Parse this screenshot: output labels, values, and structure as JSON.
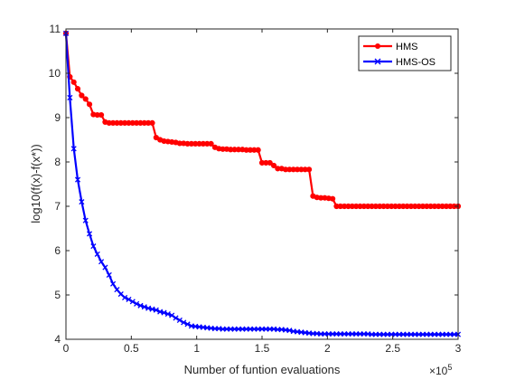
{
  "chart_data": {
    "type": "line",
    "title": "",
    "xlabel": "Number of funtion evaluations",
    "ylabel": "log10(f(x)-f(x*))",
    "x_exponent_base": "×10",
    "x_exponent_power": "5",
    "xlim": [
      0,
      3
    ],
    "ylim": [
      4,
      11
    ],
    "x_ticks": [
      0,
      0.5,
      1,
      1.5,
      2,
      2.5,
      3
    ],
    "x_tick_labels": [
      "0",
      "0.5",
      "1",
      "1.5",
      "2",
      "2.5",
      "3"
    ],
    "y_ticks": [
      4,
      5,
      6,
      7,
      8,
      9,
      10,
      11
    ],
    "y_tick_labels": [
      "4",
      "5",
      "6",
      "7",
      "8",
      "9",
      "10",
      "11"
    ],
    "legend_position": "top-right",
    "series": [
      {
        "name": "HMS",
        "color": "#ff0000",
        "marker": "circle",
        "x": [
          0,
          0.03,
          0.06,
          0.09,
          0.12,
          0.15,
          0.18,
          0.21,
          0.24,
          0.27,
          0.3,
          0.33,
          0.36,
          0.39,
          0.42,
          0.45,
          0.48,
          0.51,
          0.54,
          0.57,
          0.6,
          0.63,
          0.66,
          0.69,
          0.72,
          0.75,
          0.78,
          0.81,
          0.84,
          0.87,
          0.9,
          0.93,
          0.96,
          0.99,
          1.02,
          1.05,
          1.08,
          1.11,
          1.14,
          1.17,
          1.2,
          1.23,
          1.26,
          1.29,
          1.32,
          1.35,
          1.38,
          1.41,
          1.44,
          1.47,
          1.5,
          1.53,
          1.56,
          1.59,
          1.62,
          1.65,
          1.68,
          1.71,
          1.74,
          1.77,
          1.8,
          1.83,
          1.86,
          1.89,
          1.92,
          1.95,
          1.98,
          2.01,
          2.04,
          2.07,
          2.1,
          2.13,
          2.16,
          2.19,
          2.22,
          2.25,
          2.28,
          2.31,
          2.34,
          2.37,
          2.4,
          2.43,
          2.46,
          2.49,
          2.52,
          2.55,
          2.58,
          2.61,
          2.64,
          2.67,
          2.7,
          2.73,
          2.76,
          2.79,
          2.82,
          2.85,
          2.88,
          2.91,
          2.94,
          2.97,
          3.0
        ],
        "y": [
          10.9,
          9.92,
          9.8,
          9.65,
          9.5,
          9.42,
          9.3,
          9.07,
          9.06,
          9.06,
          8.9,
          8.88,
          8.88,
          8.88,
          8.88,
          8.88,
          8.88,
          8.88,
          8.88,
          8.88,
          8.88,
          8.88,
          8.88,
          8.55,
          8.5,
          8.47,
          8.46,
          8.45,
          8.44,
          8.42,
          8.42,
          8.41,
          8.41,
          8.41,
          8.41,
          8.41,
          8.41,
          8.41,
          8.33,
          8.3,
          8.29,
          8.29,
          8.28,
          8.28,
          8.28,
          8.28,
          8.27,
          8.27,
          8.27,
          8.27,
          7.98,
          7.98,
          7.98,
          7.92,
          7.85,
          7.85,
          7.83,
          7.83,
          7.83,
          7.83,
          7.83,
          7.83,
          7.83,
          7.23,
          7.2,
          7.19,
          7.19,
          7.18,
          7.17,
          7.0,
          7.0,
          7.0,
          7.0,
          7.0,
          7.0,
          7.0,
          7.0,
          7.0,
          7.0,
          7.0,
          7.0,
          7.0,
          7.0,
          7.0,
          7.0,
          7.0,
          7.0,
          7.0,
          7.0,
          7.0,
          7.0,
          7.0,
          7.0,
          7.0,
          7.0,
          7.0,
          7.0,
          7.0,
          7.0,
          7.0,
          7.0
        ]
      },
      {
        "name": "HMS-OS",
        "color": "#0000ff",
        "marker": "x",
        "x": [
          0,
          0.03,
          0.06,
          0.09,
          0.12,
          0.15,
          0.18,
          0.21,
          0.24,
          0.27,
          0.3,
          0.33,
          0.36,
          0.39,
          0.42,
          0.45,
          0.48,
          0.51,
          0.54,
          0.57,
          0.6,
          0.63,
          0.66,
          0.69,
          0.72,
          0.75,
          0.78,
          0.81,
          0.84,
          0.87,
          0.9,
          0.93,
          0.96,
          0.99,
          1.02,
          1.05,
          1.08,
          1.11,
          1.14,
          1.17,
          1.2,
          1.23,
          1.26,
          1.29,
          1.32,
          1.35,
          1.38,
          1.41,
          1.44,
          1.47,
          1.5,
          1.53,
          1.56,
          1.59,
          1.62,
          1.65,
          1.68,
          1.71,
          1.74,
          1.77,
          1.8,
          1.83,
          1.86,
          1.89,
          1.92,
          1.95,
          1.98,
          2.01,
          2.04,
          2.07,
          2.1,
          2.13,
          2.16,
          2.19,
          2.22,
          2.25,
          2.28,
          2.31,
          2.34,
          2.37,
          2.4,
          2.43,
          2.46,
          2.49,
          2.52,
          2.55,
          2.58,
          2.61,
          2.64,
          2.67,
          2.7,
          2.73,
          2.76,
          2.79,
          2.82,
          2.85,
          2.88,
          2.91,
          2.94,
          2.97,
          3.0
        ],
        "y": [
          10.9,
          9.45,
          8.3,
          7.6,
          7.1,
          6.68,
          6.38,
          6.1,
          5.92,
          5.75,
          5.62,
          5.45,
          5.25,
          5.12,
          5.02,
          4.94,
          4.9,
          4.85,
          4.8,
          4.76,
          4.73,
          4.7,
          4.68,
          4.66,
          4.62,
          4.6,
          4.57,
          4.54,
          4.48,
          4.43,
          4.38,
          4.34,
          4.3,
          4.29,
          4.28,
          4.27,
          4.26,
          4.25,
          4.24,
          4.24,
          4.23,
          4.23,
          4.23,
          4.23,
          4.23,
          4.23,
          4.23,
          4.23,
          4.23,
          4.23,
          4.23,
          4.23,
          4.23,
          4.23,
          4.22,
          4.22,
          4.21,
          4.2,
          4.18,
          4.17,
          4.16,
          4.15,
          4.14,
          4.13,
          4.13,
          4.12,
          4.12,
          4.12,
          4.12,
          4.12,
          4.12,
          4.12,
          4.12,
          4.12,
          4.12,
          4.12,
          4.12,
          4.12,
          4.11,
          4.11,
          4.11,
          4.11,
          4.11,
          4.11,
          4.11,
          4.11,
          4.11,
          4.11,
          4.11,
          4.11,
          4.11,
          4.11,
          4.11,
          4.11,
          4.11,
          4.11,
          4.11,
          4.11,
          4.11,
          4.11,
          4.11
        ]
      }
    ]
  }
}
